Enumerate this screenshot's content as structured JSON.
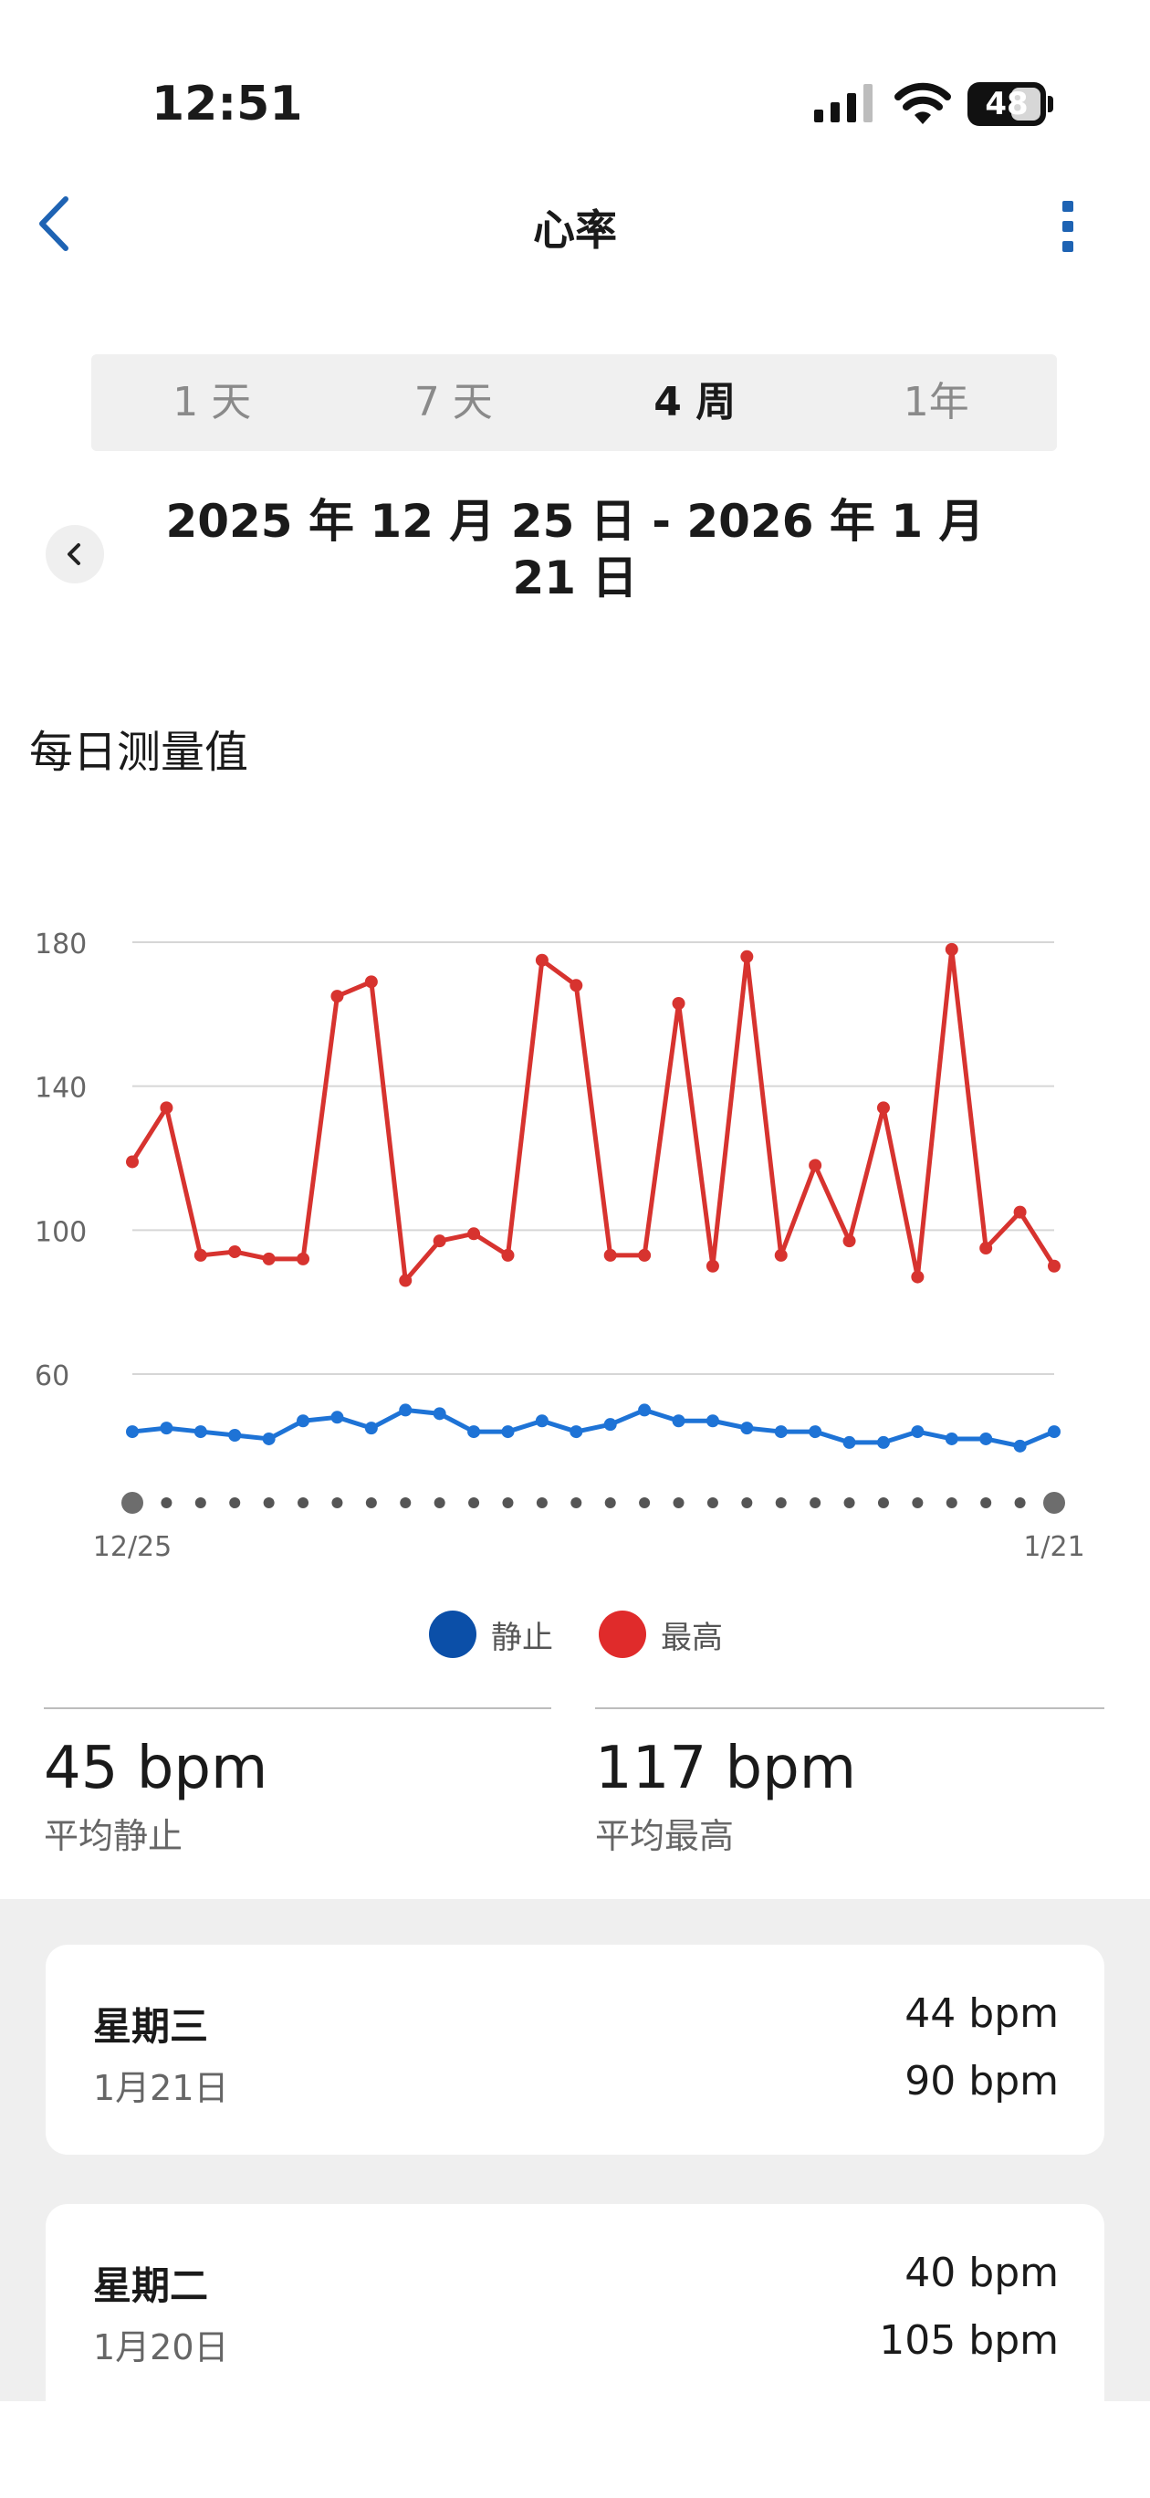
{
  "status_bar": {
    "time": "12:51",
    "battery": "48"
  },
  "header": {
    "title": "心率",
    "back_icon": "chevron-left-icon",
    "more_icon": "vertical-dots-icon"
  },
  "tabs": [
    {
      "label": "1 天",
      "active": false
    },
    {
      "label": "7 天",
      "active": false
    },
    {
      "label": "4 周",
      "active": true
    },
    {
      "label": "1年",
      "active": false
    }
  ],
  "range": {
    "line1": "2025 年 12 月 25 日 - 2026 年 1 月",
    "line2": "21 日"
  },
  "section_title": "每日测量值",
  "chart_data": {
    "type": "line",
    "x_start_label": "12/25",
    "x_end_label": "1/21",
    "y_ticks": [
      180,
      140,
      100,
      60
    ],
    "ylim": [
      25,
      185
    ],
    "series": [
      {
        "name": "静止",
        "color": "#1e73d6",
        "values": [
          44,
          45,
          44,
          43,
          42,
          47,
          48,
          45,
          50,
          49,
          44,
          44,
          47,
          44,
          46,
          50,
          47,
          47,
          45,
          44,
          44,
          41,
          41,
          44,
          42,
          42,
          40,
          44
        ]
      },
      {
        "name": "最高",
        "color": "#d7332f",
        "values": [
          119,
          134,
          93,
          94,
          92,
          92,
          165,
          169,
          86,
          97,
          99,
          93,
          175,
          168,
          93,
          93,
          163,
          90,
          176,
          93,
          118,
          97,
          134,
          87,
          178,
          95,
          105,
          90
        ]
      }
    ]
  },
  "legend": [
    {
      "label": "静止",
      "color": "#0b4fa8"
    },
    {
      "label": "最高",
      "color": "#e02b2b"
    }
  ],
  "stats": [
    {
      "value": "45 bpm",
      "label": "平均静止"
    },
    {
      "value": "117 bpm",
      "label": "平均最高"
    }
  ],
  "days": [
    {
      "day": "星期三",
      "date": "1月21日",
      "resting": "44 bpm",
      "max": "90 bpm"
    },
    {
      "day": "星期二",
      "date": "1月20日",
      "resting": "40 bpm",
      "max": "105 bpm"
    }
  ]
}
